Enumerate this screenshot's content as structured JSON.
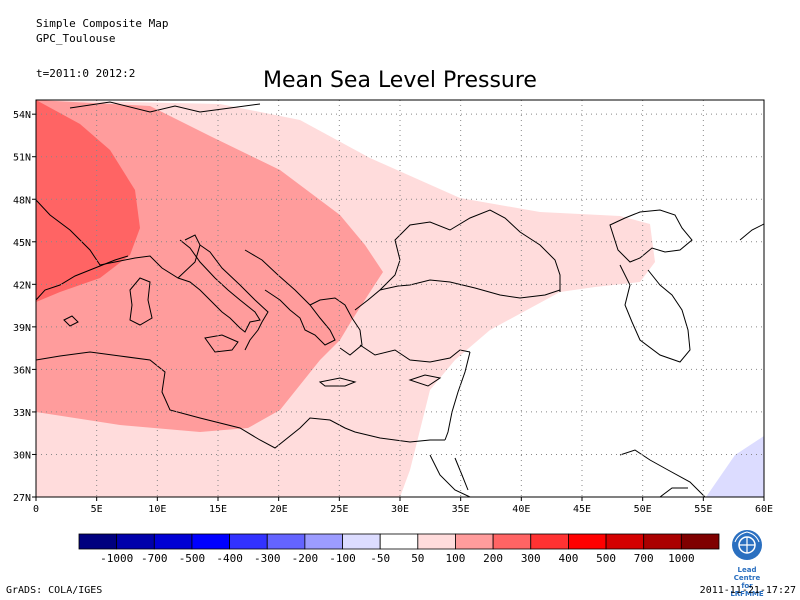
{
  "header": {
    "line1": "Simple Composite Map",
    "line2": "GPC_Toulouse",
    "time": "t=2011:0 2012:2",
    "title": "Mean Sea Level Pressure"
  },
  "map": {
    "lon_range": [
      0,
      60
    ],
    "lat_range": [
      27,
      55
    ],
    "x_ticks": [
      "0",
      "5E",
      "10E",
      "15E",
      "20E",
      "25E",
      "30E",
      "35E",
      "40E",
      "45E",
      "50E",
      "55E",
      "60E"
    ],
    "y_ticks": [
      "27N",
      "30N",
      "33N",
      "36N",
      "39N",
      "42N",
      "45N",
      "48N",
      "51N",
      "54N"
    ],
    "grid": "dotted"
  },
  "colorbar": {
    "labels": [
      "-1000",
      "-700",
      "-500",
      "-400",
      "-300",
      "-200",
      "-100",
      "-50",
      "50",
      "100",
      "200",
      "300",
      "400",
      "500",
      "700",
      "1000"
    ],
    "colors": [
      "#00007f",
      "#0000aa",
      "#0000d4",
      "#0000ff",
      "#3232ff",
      "#6464ff",
      "#9c9cff",
      "#dcdcff",
      "#ffffff",
      "#ffdcdc",
      "#ff9c9c",
      "#ff6464",
      "#ff3232",
      "#ff0000",
      "#d40000",
      "#aa0000",
      "#7f0000"
    ]
  },
  "fill_colors": {
    "level50": "#ffdcdc",
    "level100": "#ff9c9c",
    "level200": "#ff6464",
    "level_neg50": "#dcdcff"
  },
  "footer": {
    "left": "GrADS: COLA/IGES",
    "right": "2011-11-21-17:27"
  },
  "logo": {
    "line1": "Lead Centre",
    "line2": "for LRFMME",
    "icon": "wmo-emblem-icon"
  }
}
